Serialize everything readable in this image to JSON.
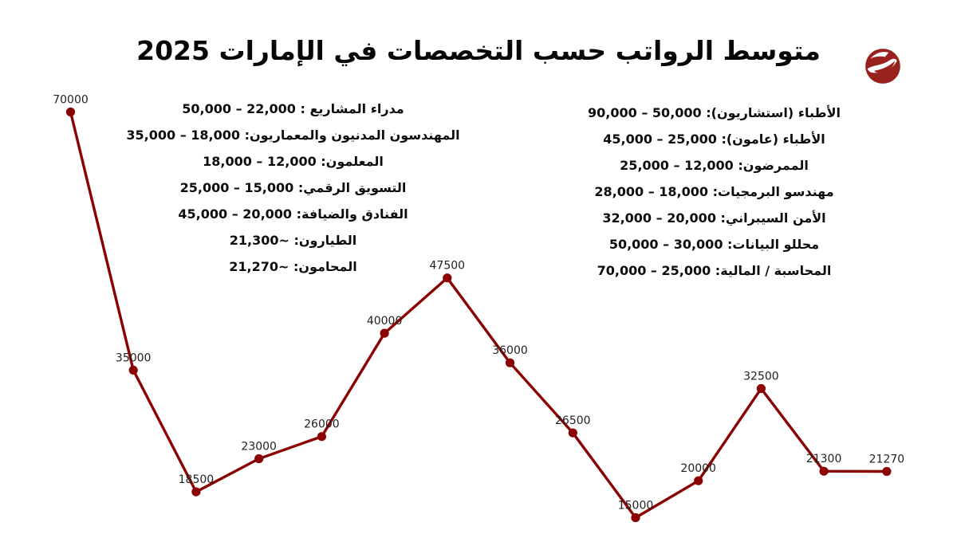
{
  "page": {
    "title": "متوسط الرواتب حسب التخصصات في الإمارات 2025",
    "background": "#ffffff"
  },
  "brand": {
    "logo_name": "calligraphic-swoosh-logo",
    "color": "#98201d"
  },
  "salary_columns": {
    "left": [
      "مدراء المشاريع : 22,000 – 50,000",
      "المهندسون المدنيون والمعماريون: 18,000 – 35,000",
      "المعلمون: 12,000 – 18,000",
      "التسويق الرقمي: 15,000 – 25,000",
      "الفنادق والضيافة: 20,000 – 45,000",
      "الطيارون: ~21,300",
      "المحامون: ~21,270"
    ],
    "right": [
      "الأطباء (استشاريون): 50,000 – 90,000",
      "الأطباء (عامون): 25,000 – 45,000",
      "الممرضون: 12,000 – 25,000",
      "مهندسو البرمجيات: 18,000 – 28,000",
      "الأمن السيبراني: 20,000 – 32,000",
      "محللو البيانات: 30,000 – 50,000",
      "المحاسبة / المالية: 25,000 – 70,000"
    ]
  },
  "chart_data": {
    "type": "line",
    "title": "متوسط الرواتب حسب التخصصات في الإمارات 2025",
    "categories": [
      "الأطباء (استشاريون)",
      "الأطباء (عامون)",
      "الممرضون",
      "مهندسو البرمجيات",
      "الأمن السيبراني",
      "محللو البيانات",
      "المحاسبة / المالية",
      "مدراء المشاريع",
      "المهندسون المدنيون والمعماريون",
      "المعلمون",
      "التسويق الرقمي",
      "الفنادق والضيافة",
      "الطيارون",
      "المحامون"
    ],
    "values": [
      70000,
      35000,
      18500,
      23000,
      26000,
      40000,
      47500,
      36000,
      26500,
      15000,
      20000,
      32500,
      21300,
      21270
    ],
    "point_labels": [
      "70000",
      "35000",
      "18500",
      "23000",
      "26000",
      "40000",
      "47500",
      "36000",
      "26500",
      "15000",
      "20000",
      "32500",
      "21300",
      "21270"
    ],
    "xlabel": "",
    "ylabel": "",
    "ylim": [
      15000,
      70000
    ],
    "grid": false,
    "legend": false,
    "axes_hidden": true,
    "line_color": "#8b0000",
    "marker_color": "#8b0000",
    "label_color": "#1f1f1f"
  }
}
